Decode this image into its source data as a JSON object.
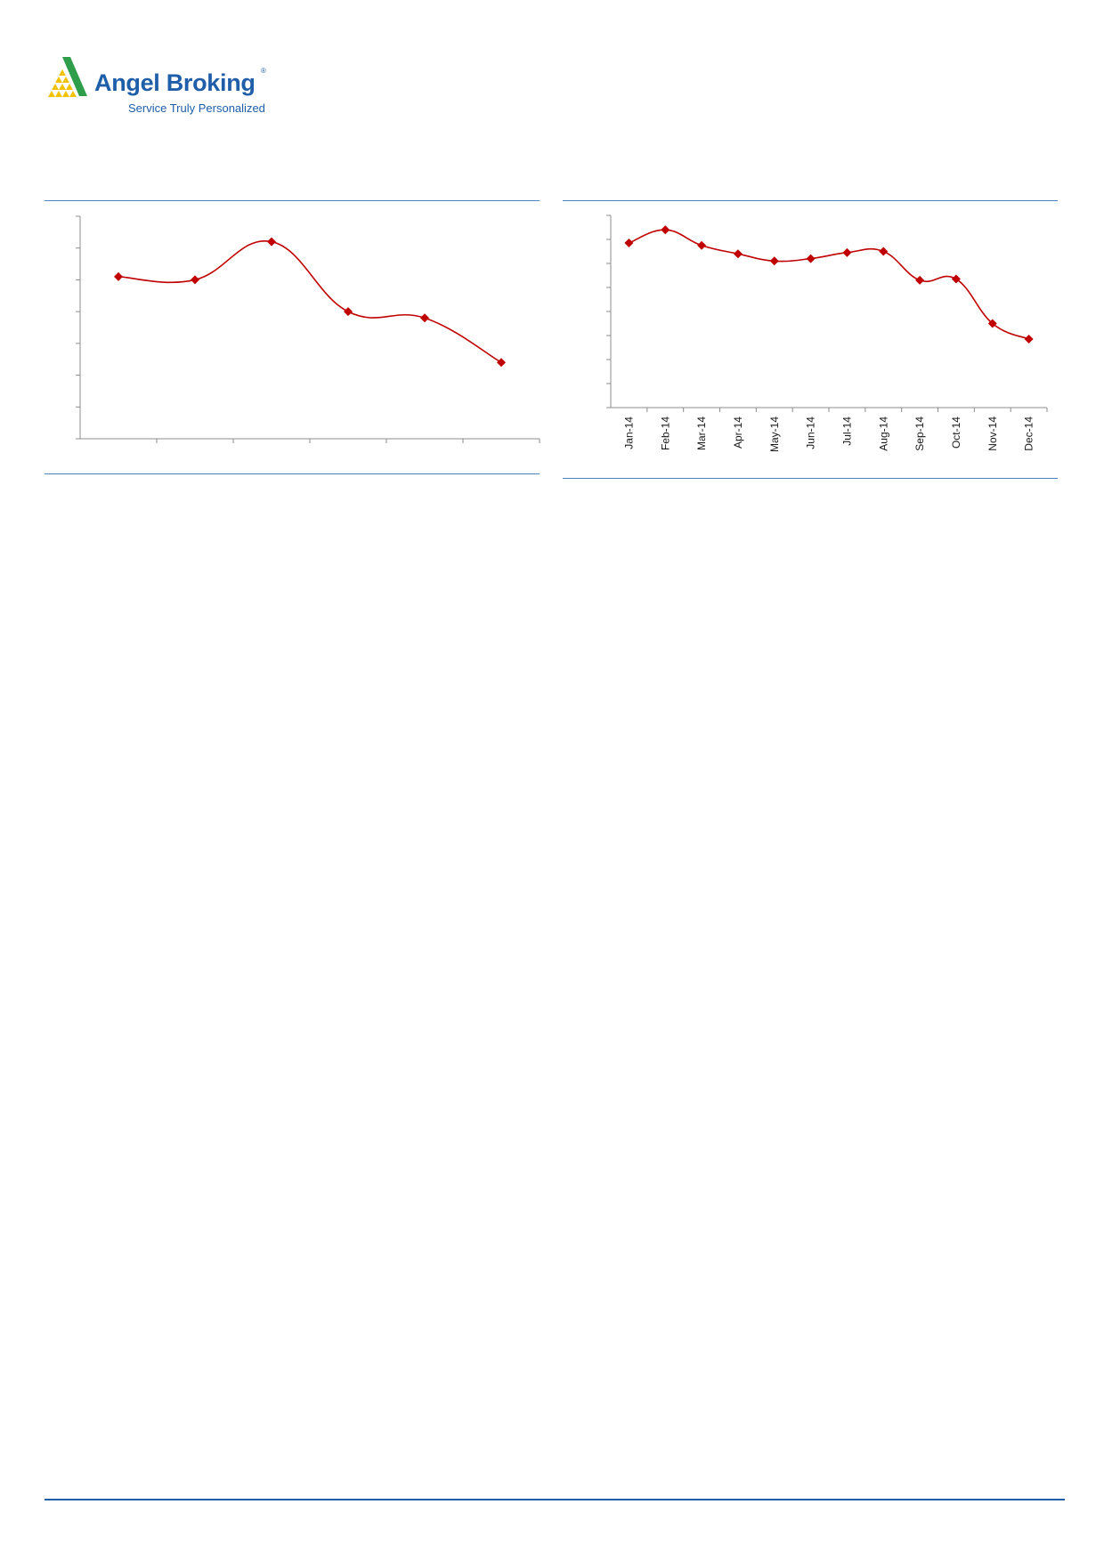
{
  "brand": {
    "name": "Angel Broking",
    "registered_mark": "®",
    "tagline": "Service Truly Personalized",
    "colors": {
      "primary": "#1f5ea8",
      "accent_green": "#2e9e4a",
      "accent_yellow": "#f2c200"
    }
  },
  "chart_data": [
    {
      "type": "line",
      "smooth": true,
      "marker": "diamond",
      "color": "#c00000",
      "categories": [
        "",
        "",
        "",
        "",
        "",
        ""
      ],
      "values": [
        5.1,
        5.0,
        6.2,
        4.0,
        3.8,
        2.4
      ],
      "ylim": [
        0,
        7
      ],
      "y_ticks": 7,
      "grid": false,
      "tick_labels_visible": false
    },
    {
      "type": "line",
      "smooth": true,
      "marker": "diamond",
      "color": "#c00000",
      "categories": [
        "Jan-14",
        "Feb-14",
        "Mar-14",
        "Apr-14",
        "May-14",
        "Jun-14",
        "Jul-14",
        "Aug-14",
        "Sep-14",
        "Oct-14",
        "Nov-14",
        "Dec-14"
      ],
      "values": [
        6.85,
        7.4,
        6.75,
        6.4,
        6.1,
        6.2,
        6.45,
        6.5,
        5.3,
        5.35,
        3.5,
        2.85
      ],
      "ylim": [
        0,
        8
      ],
      "y_ticks": 8,
      "grid": false,
      "tick_labels_visible": true
    }
  ]
}
